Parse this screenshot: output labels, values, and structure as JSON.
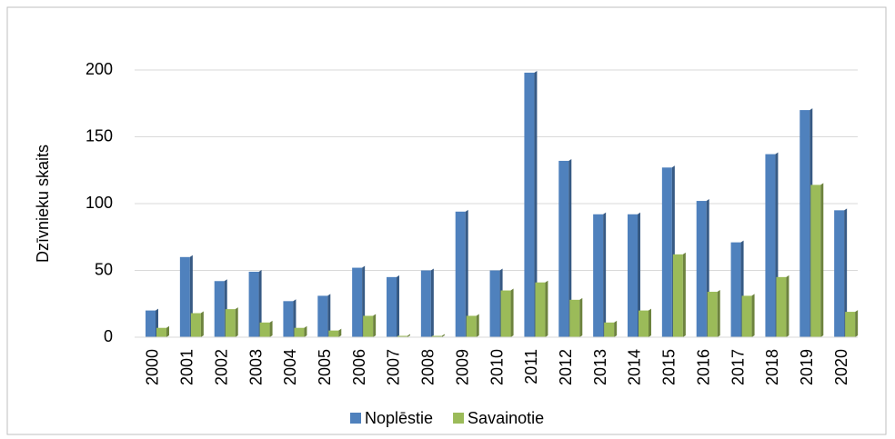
{
  "chart_data": {
    "type": "bar",
    "y_label": "Dzīvnieku skaits",
    "categories": [
      "2000",
      "2001",
      "2002",
      "2003",
      "2004",
      "2005",
      "2006",
      "2007",
      "2008",
      "2009",
      "2010",
      "2011",
      "2012",
      "2013",
      "2014",
      "2015",
      "2016",
      "2017",
      "2018",
      "2019",
      "2020"
    ],
    "series": [
      {
        "name": "Noplēstie",
        "color": "#4f81bd",
        "values": [
          20,
          60,
          42,
          49,
          27,
          31,
          52,
          45,
          50,
          94,
          50,
          198,
          132,
          92,
          92,
          127,
          102,
          71,
          137,
          170,
          95
        ]
      },
      {
        "name": "Savainotie",
        "color": "#9bbb59",
        "values": [
          7,
          18,
          21,
          11,
          7,
          5,
          16,
          1,
          1,
          16,
          35,
          41,
          28,
          11,
          20,
          62,
          34,
          31,
          45,
          114,
          19
        ]
      }
    ],
    "ylim": [
      0,
      200
    ],
    "yticks": [
      0,
      50,
      100,
      150,
      200
    ],
    "grid": true,
    "legend": "bottom"
  }
}
